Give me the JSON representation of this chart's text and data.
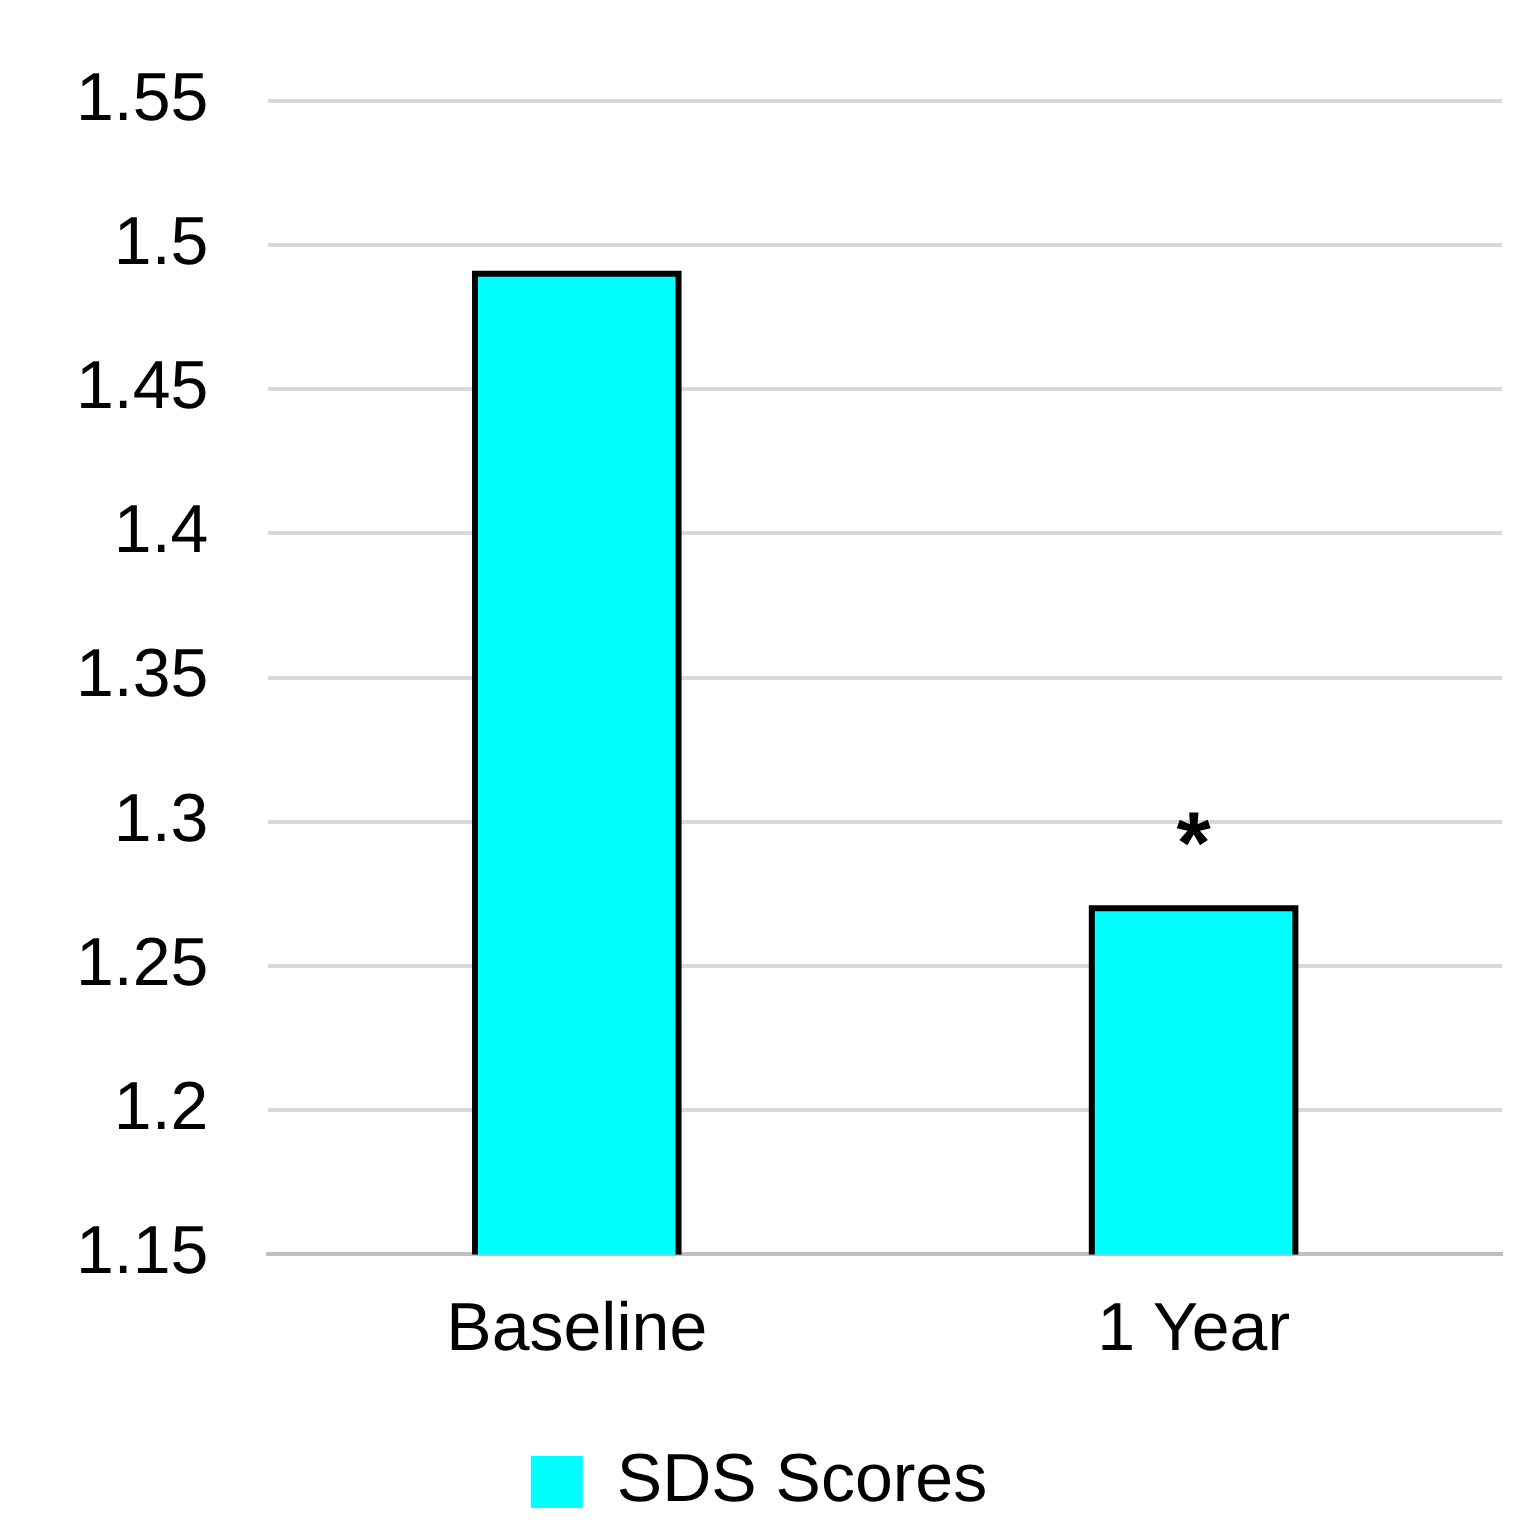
{
  "chart_data": {
    "type": "bar",
    "categories": [
      "Baseline",
      "1 Year"
    ],
    "series": [
      {
        "name": "SDS Scores",
        "color": "#00ffff",
        "values": [
          1.49,
          1.27
        ]
      }
    ],
    "ylim": [
      1.15,
      1.55
    ],
    "yticks": [
      1.15,
      1.2,
      1.25,
      1.3,
      1.35,
      1.4,
      1.45,
      1.5,
      1.55
    ],
    "grid": "y",
    "legend": "bottom",
    "annotations": [
      {
        "text": "*",
        "x": "1 Year",
        "y": 1.27
      }
    ]
  }
}
